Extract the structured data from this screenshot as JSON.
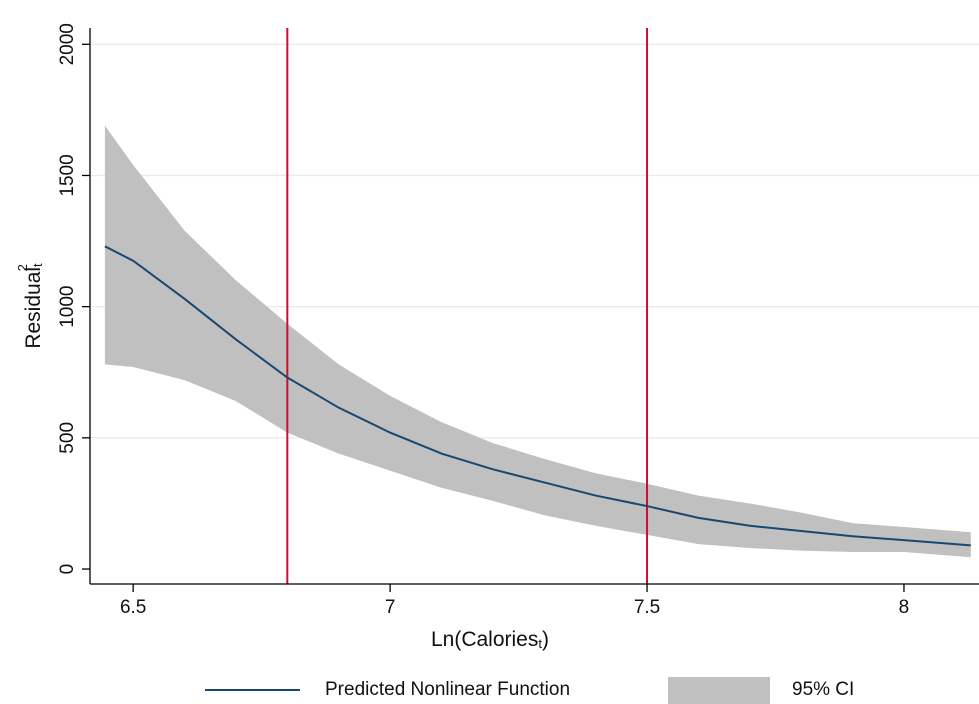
{
  "chart_data": {
    "type": "line",
    "x_label": {
      "text": "Ln(Calories",
      "subscript": "t",
      "suffix": ")"
    },
    "y_label": {
      "text": "Residual",
      "subscript": "t",
      "superscript": "2"
    },
    "x": [
      6.445,
      6.5,
      6.6,
      6.7,
      6.8,
      6.9,
      7.0,
      7.1,
      7.2,
      7.3,
      7.4,
      7.5,
      7.6,
      7.7,
      7.8,
      7.9,
      8.0,
      8.13
    ],
    "series": [
      {
        "name": "Predicted Nonlinear Function",
        "color": "#1a476f",
        "values": [
          1230,
          1175,
          1030,
          875,
          730,
          615,
          520,
          440,
          380,
          330,
          280,
          240,
          195,
          165,
          145,
          125,
          110,
          90
        ]
      }
    ],
    "band": {
      "name": "95% CI",
      "color": "#c0c0c0",
      "upper": [
        1690,
        1540,
        1290,
        1100,
        935,
        780,
        660,
        560,
        480,
        420,
        365,
        325,
        280,
        250,
        215,
        175,
        160,
        140
      ],
      "lower": [
        780,
        770,
        720,
        640,
        520,
        440,
        375,
        310,
        260,
        205,
        165,
        130,
        95,
        80,
        70,
        65,
        65,
        45
      ]
    },
    "vlines": [
      6.8,
      7.5
    ],
    "vline_color": "#c8102e",
    "xlim": [
      6.416,
      8.146
    ],
    "xticks": [
      6.5,
      7,
      7.5,
      8
    ],
    "ylim": [
      -57,
      2062
    ],
    "yticks": [
      0,
      500,
      1000,
      1500,
      2000
    ],
    "grid": true,
    "legend": "bottom"
  }
}
